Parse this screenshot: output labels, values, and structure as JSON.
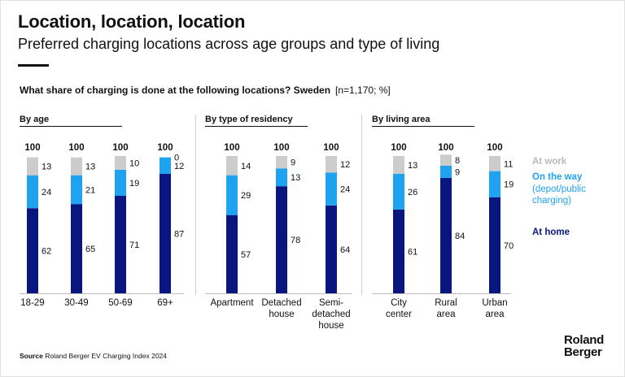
{
  "header": {
    "title": "Location, location, location",
    "subtitle": "Preferred charging locations across age groups and type of living",
    "question": "What share of charging is done at the following locations? Sweden",
    "question_note": "[n=1,170; %]"
  },
  "legend": {
    "at_work": "At work",
    "on_the_way": "On the way",
    "on_the_way_sub1": "(depot/public",
    "on_the_way_sub2": "charging)",
    "at_home": "At home"
  },
  "source": {
    "label": "Source",
    "text": "Roland Berger EV Charging Index 2024"
  },
  "logo": {
    "line1": "Roland",
    "line2": "Berger"
  },
  "colors": {
    "at_home": "#0a1680",
    "on_the_way": "#1fa3f0",
    "at_work": "#cccccc"
  },
  "chart_data": {
    "type": "bar",
    "stacked": true,
    "ylim": [
      0,
      100
    ],
    "total_label": "100",
    "series_order": [
      "At home",
      "On the way",
      "At work"
    ],
    "panels": [
      {
        "title": "By age",
        "categories": [
          [
            "18-29"
          ],
          [
            "30-49"
          ],
          [
            "50-69"
          ],
          [
            "69+"
          ]
        ],
        "series": [
          {
            "name": "At home",
            "values": [
              62,
              65,
              71,
              87
            ]
          },
          {
            "name": "On the way",
            "values": [
              24,
              21,
              19,
              12
            ]
          },
          {
            "name": "At work",
            "values": [
              13,
              13,
              10,
              0
            ]
          }
        ]
      },
      {
        "title": "By type of residency",
        "categories": [
          [
            "Apartment"
          ],
          [
            "Detached",
            "house"
          ],
          [
            "Semi-",
            "detached",
            "house"
          ]
        ],
        "series": [
          {
            "name": "At home",
            "values": [
              57,
              78,
              64
            ]
          },
          {
            "name": "On the way",
            "values": [
              29,
              13,
              24
            ]
          },
          {
            "name": "At work",
            "values": [
              14,
              9,
              12
            ]
          }
        ]
      },
      {
        "title": "By living area",
        "categories": [
          [
            "City",
            "center"
          ],
          [
            "Rural",
            "area"
          ],
          [
            "Urban",
            "area"
          ]
        ],
        "series": [
          {
            "name": "At home",
            "values": [
              61,
              84,
              70
            ]
          },
          {
            "name": "On the way",
            "values": [
              26,
              9,
              19
            ]
          },
          {
            "name": "At work",
            "values": [
              13,
              8,
              11
            ]
          }
        ]
      }
    ]
  }
}
